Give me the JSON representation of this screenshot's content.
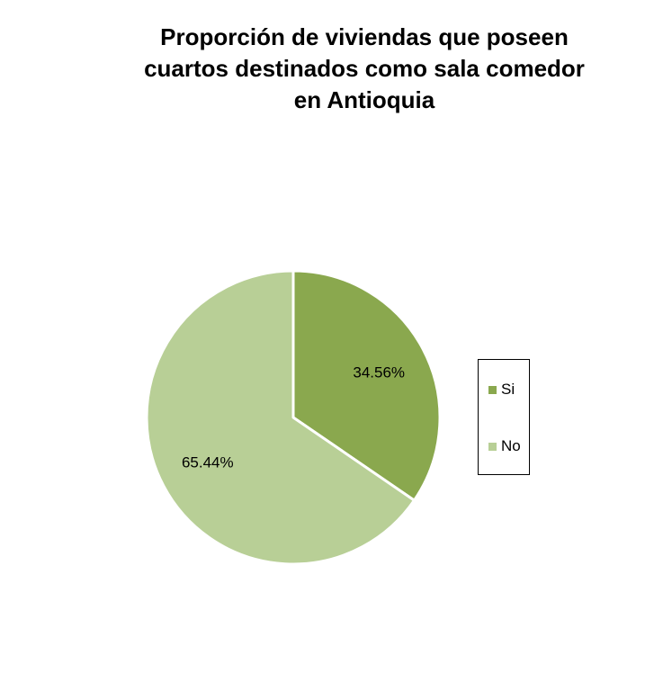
{
  "chart_data": {
    "type": "pie",
    "title_lines": [
      "Proporción de viviendas que poseen",
      "cuartos destinados como sala comedor",
      "en Antioquia"
    ],
    "slices": [
      {
        "label": "Si",
        "value": 34.56,
        "display": "34.56%",
        "color": "#8aa84e"
      },
      {
        "label": "No",
        "value": 65.44,
        "display": "65.44%",
        "color": "#b8cf96"
      }
    ],
    "legend_position": "right",
    "slice_border_color": "#ffffff"
  }
}
